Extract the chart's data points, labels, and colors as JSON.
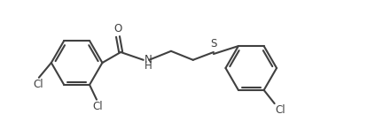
{
  "bg_color": "#ffffff",
  "line_color": "#404040",
  "text_color": "#404040",
  "line_width": 1.5,
  "font_size": 8.5,
  "fig_width": 4.41,
  "fig_height": 1.38,
  "dpi": 100,
  "xlim": [
    -0.3,
    10.7
  ],
  "ylim": [
    0.05,
    3.15
  ]
}
